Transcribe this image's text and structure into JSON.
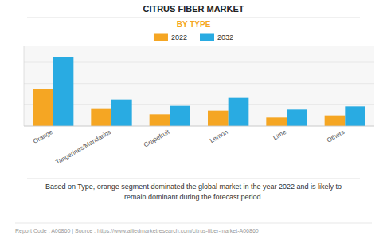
{
  "chart_data": {
    "type": "bar",
    "title": "CITRUS FIBER MARKET",
    "subtitle": "BY TYPE",
    "categories": [
      "Orange",
      "Tangerines/Mandarins",
      "Grapefruit",
      "Lemon",
      "Lime",
      "Others"
    ],
    "series": [
      {
        "name": "2022",
        "color": "#F5A623",
        "values": [
          3.5,
          1.6,
          1.1,
          1.45,
          0.8,
          1.0
        ]
      },
      {
        "name": "2032",
        "color": "#29ABE2",
        "values": [
          6.5,
          2.5,
          1.9,
          2.65,
          1.55,
          1.85
        ]
      }
    ],
    "ylim": [
      0,
      7.5
    ],
    "yticks": [
      0,
      2,
      4,
      6
    ],
    "grid": true,
    "tick_labels": "x",
    "legend": "top",
    "annotations": [
      "Based on Type, orange segment dominated the global market in the year 2022 and is likely to",
      "remain dominant during the forecast period.",
      "Report Code : A06860  |  Source : https://www.alliedmarketresearch.com/citrus-fiber-market-A06860"
    ]
  }
}
